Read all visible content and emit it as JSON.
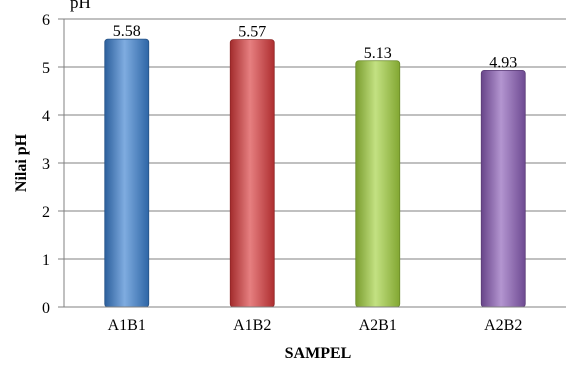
{
  "chart_data": {
    "type": "bar",
    "title": "pH",
    "categories": [
      "A1B1",
      "A1B2",
      "A2B1",
      "A2B2"
    ],
    "values": [
      5.58,
      5.57,
      5.13,
      4.93
    ],
    "data_labels": [
      "5.58",
      "5.57",
      "5.13",
      "4.93"
    ],
    "xlabel": "SAMPEL",
    "ylabel": "Nilai pH",
    "ylim": [
      0,
      6
    ],
    "yticks": [
      "0",
      "1",
      "2",
      "3",
      "4",
      "5",
      "6"
    ],
    "grid": true,
    "legend": "none",
    "colors": [
      "#3a7fd0",
      "#d93a3c",
      "#a2d13f",
      "#8a5cb6"
    ]
  }
}
